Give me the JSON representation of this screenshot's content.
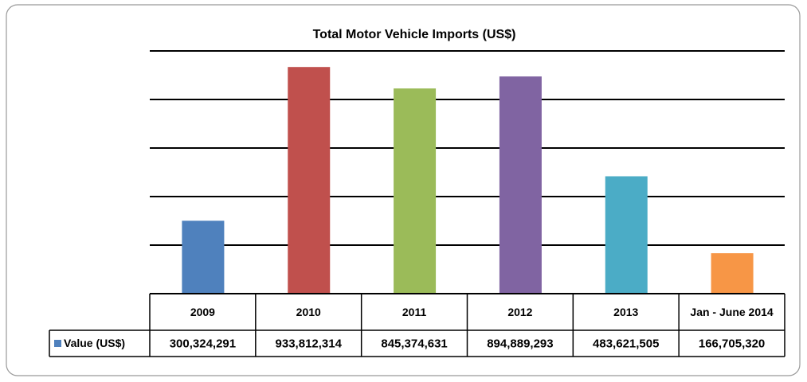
{
  "chart_data": {
    "type": "bar",
    "title": "Total Motor Vehicle Imports (US$)",
    "categories": [
      "2009",
      "2010",
      "2011",
      "2012",
      "2013",
      "Jan - June 2014"
    ],
    "series": [
      {
        "name": "Value (US$)",
        "color": "#4f81bd",
        "colors": [
          "#4f81bd",
          "#c0504d",
          "#9bbb59",
          "#8064a2",
          "#4bacc6",
          "#f79646"
        ],
        "values": [
          300324291,
          933812314,
          845374631,
          894889293,
          483621505,
          166705320
        ],
        "value_labels": [
          "300,324,291",
          "933,812,314",
          "845,374,631",
          "894,889,293",
          "483,621,505",
          "166,705,320"
        ]
      }
    ],
    "ylim": [
      0,
      1000000000
    ],
    "yticks": [
      0,
      200000000,
      400000000,
      600000000,
      800000000,
      1000000000
    ],
    "grid": true,
    "data_table": true
  }
}
